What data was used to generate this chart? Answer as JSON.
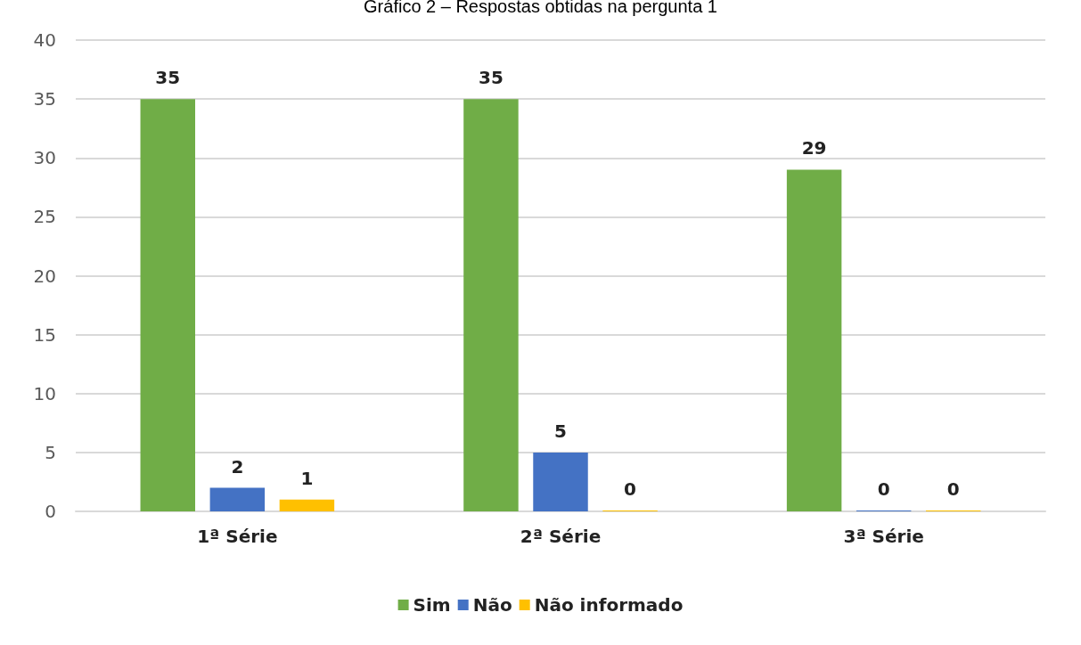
{
  "chart_data": {
    "type": "bar",
    "title": "Gráfico 2 – Respostas obtidas na pergunta 1",
    "categories": [
      "1ª Série",
      "2ª Série",
      "3ª Série"
    ],
    "series": [
      {
        "name": "Sim",
        "color": "#70ad47",
        "values": [
          35,
          35,
          29
        ]
      },
      {
        "name": "Não",
        "color": "#4472c4",
        "values": [
          2,
          5,
          0
        ]
      },
      {
        "name": "Não informado",
        "color": "#ffc000",
        "values": [
          1,
          0,
          0
        ]
      }
    ],
    "ylim": [
      0,
      40
    ],
    "yticks": [
      0,
      5,
      10,
      15,
      20,
      25,
      30,
      35,
      40
    ],
    "grid": "y",
    "legend": "bottom",
    "data_labels": true
  }
}
